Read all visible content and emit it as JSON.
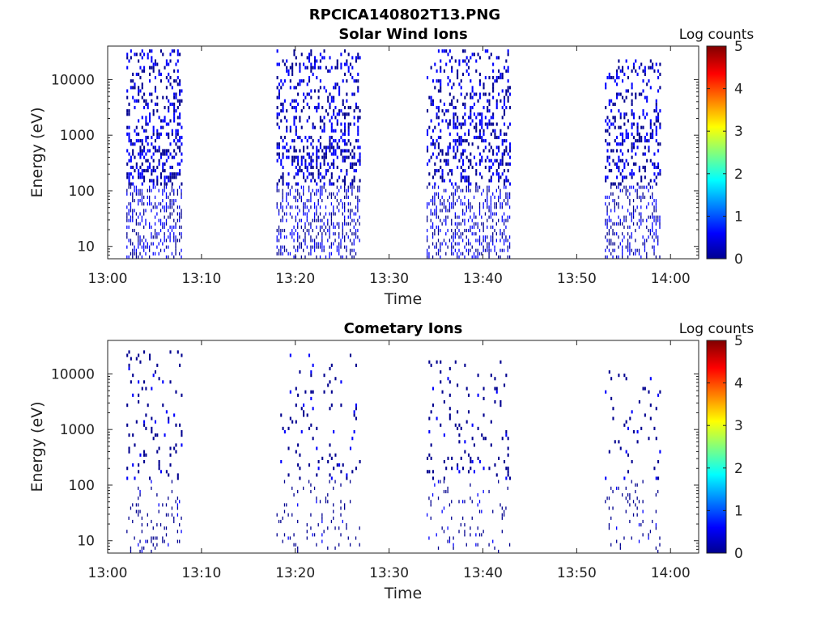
{
  "figure_title": "RPCICA140802T13.PNG",
  "colormap": [
    "#00008f",
    "#0000ff",
    "#00ffff",
    "#ffff00",
    "#ff0000",
    "#800000"
  ],
  "chart_data": [
    {
      "type": "heatmap",
      "title": "Solar Wind Ions",
      "xlabel": "Time",
      "ylabel": "Energy (eV)",
      "y_scale": "log",
      "xlim": [
        "13:00",
        "14:03"
      ],
      "ylim": [
        6,
        40000
      ],
      "x_ticks": [
        "13:00",
        "13:10",
        "13:20",
        "13:30",
        "13:40",
        "13:50",
        "14:00"
      ],
      "y_ticks": [
        10,
        100,
        1000,
        10000
      ],
      "y_tick_labels": [
        "10",
        "100",
        "1000",
        "10000"
      ],
      "colorbar": {
        "label": "Log counts",
        "range": [
          0,
          5
        ],
        "ticks": [
          "0",
          "1",
          "2",
          "3",
          "4",
          "5"
        ]
      },
      "bursts": [
        {
          "start": "13:02",
          "end": "13:08",
          "emin": 6,
          "emax": 35000,
          "density": 0.45,
          "max_log": 1.0
        },
        {
          "start": "13:18",
          "end": "13:27",
          "emin": 6,
          "emax": 35000,
          "density": 0.42,
          "max_log": 1.0
        },
        {
          "start": "13:34",
          "end": "13:43",
          "emin": 6,
          "emax": 35000,
          "density": 0.4,
          "max_log": 1.0
        },
        {
          "start": "13:53",
          "end": "13:59",
          "emin": 6,
          "emax": 25000,
          "density": 0.38,
          "max_log": 1.0
        }
      ]
    },
    {
      "type": "heatmap",
      "title": "Cometary Ions",
      "xlabel": "Time",
      "ylabel": "Energy (eV)",
      "y_scale": "log",
      "xlim": [
        "13:00",
        "14:03"
      ],
      "ylim": [
        6,
        40000
      ],
      "x_ticks": [
        "13:00",
        "13:10",
        "13:20",
        "13:30",
        "13:40",
        "13:50",
        "14:00"
      ],
      "y_ticks": [
        10,
        100,
        1000,
        10000
      ],
      "y_tick_labels": [
        "10",
        "100",
        "1000",
        "10000"
      ],
      "colorbar": {
        "label": "Log counts",
        "range": [
          0,
          5
        ],
        "ticks": [
          "0",
          "1",
          "2",
          "3",
          "4",
          "5"
        ]
      },
      "bursts": [
        {
          "start": "13:02",
          "end": "13:08",
          "emin": 6,
          "emax": 30000,
          "density": 0.12,
          "max_log": 0.6
        },
        {
          "start": "13:18",
          "end": "13:27",
          "emin": 6,
          "emax": 30000,
          "density": 0.09,
          "max_log": 0.6
        },
        {
          "start": "13:34",
          "end": "13:43",
          "emin": 6,
          "emax": 20000,
          "density": 0.08,
          "max_log": 0.6
        },
        {
          "start": "13:53",
          "end": "13:59",
          "emin": 6,
          "emax": 12000,
          "density": 0.08,
          "max_log": 0.6
        }
      ]
    }
  ]
}
